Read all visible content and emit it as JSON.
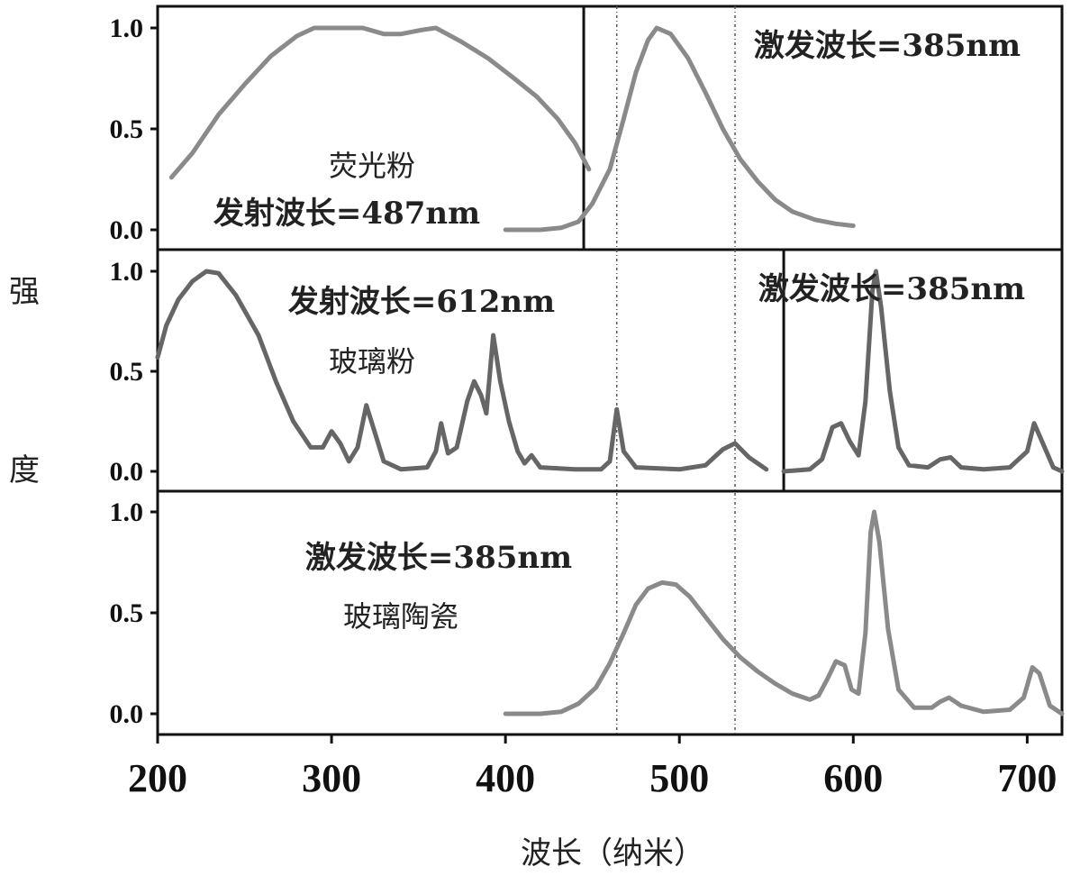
{
  "chart_data": {
    "type": "line",
    "xlabel": "波长（纳米）",
    "ylabel_chars": [
      "强",
      "度"
    ],
    "xlim": [
      200,
      720
    ],
    "x_ticks": [
      "200",
      "300",
      "400",
      "500",
      "600",
      "700"
    ],
    "grid": false,
    "reference_lines": [
      464,
      532
    ],
    "panels": [
      {
        "id": "phosphor",
        "ylim": [
          0,
          1.2
        ],
        "y_ticks": [
          "0.0",
          "0.5",
          "1.0"
        ],
        "divider_x": 445,
        "labels": {
          "material": "荧光粉",
          "emission": "发射波长=487nm",
          "excitation": "激发波长=385nm"
        },
        "series": [
          {
            "role": "excitation",
            "color": "#8a8a8a",
            "points": [
              [
                208,
                0.26
              ],
              [
                220,
                0.38
              ],
              [
                235,
                0.57
              ],
              [
                250,
                0.72
              ],
              [
                265,
                0.86
              ],
              [
                280,
                0.96
              ],
              [
                290,
                1.0
              ],
              [
                305,
                1.0
              ],
              [
                318,
                1.0
              ],
              [
                330,
                0.97
              ],
              [
                340,
                0.97
              ],
              [
                352,
                0.99
              ],
              [
                360,
                1.0
              ],
              [
                375,
                0.93
              ],
              [
                390,
                0.85
              ],
              [
                405,
                0.75
              ],
              [
                418,
                0.66
              ],
              [
                430,
                0.55
              ],
              [
                440,
                0.43
              ],
              [
                448,
                0.3
              ]
            ]
          },
          {
            "role": "emission",
            "color": "#8a8a8a",
            "points": [
              [
                400,
                0.0
              ],
              [
                420,
                0.0
              ],
              [
                432,
                0.01
              ],
              [
                442,
                0.04
              ],
              [
                450,
                0.13
              ],
              [
                460,
                0.3
              ],
              [
                468,
                0.55
              ],
              [
                475,
                0.78
              ],
              [
                482,
                0.94
              ],
              [
                487,
                1.0
              ],
              [
                495,
                0.97
              ],
              [
                505,
                0.85
              ],
              [
                515,
                0.68
              ],
              [
                525,
                0.5
              ],
              [
                535,
                0.35
              ],
              [
                545,
                0.24
              ],
              [
                555,
                0.15
              ],
              [
                565,
                0.09
              ],
              [
                578,
                0.05
              ],
              [
                590,
                0.03
              ],
              [
                600,
                0.02
              ]
            ]
          }
        ]
      },
      {
        "id": "glass_powder",
        "ylim": [
          0,
          1.2
        ],
        "y_ticks": [
          "0.0",
          "0.5",
          "1.0"
        ],
        "divider_x": 560,
        "labels": {
          "emission": "发射波长=612nm",
          "material": "玻璃粉",
          "excitation": "激发波长=385nm"
        },
        "series": [
          {
            "role": "excitation",
            "color": "#666666",
            "points": [
              [
                200,
                0.57
              ],
              [
                205,
                0.73
              ],
              [
                212,
                0.86
              ],
              [
                220,
                0.95
              ],
              [
                228,
                1.0
              ],
              [
                235,
                0.99
              ],
              [
                245,
                0.88
              ],
              [
                258,
                0.68
              ],
              [
                268,
                0.45
              ],
              [
                278,
                0.25
              ],
              [
                288,
                0.12
              ],
              [
                295,
                0.12
              ],
              [
                300,
                0.2
              ],
              [
                305,
                0.14
              ],
              [
                310,
                0.05
              ],
              [
                315,
                0.12
              ],
              [
                320,
                0.33
              ],
              [
                324,
                0.22
              ],
              [
                330,
                0.05
              ],
              [
                340,
                0.01
              ],
              [
                355,
                0.02
              ],
              [
                360,
                0.1
              ],
              [
                363,
                0.24
              ],
              [
                367,
                0.09
              ],
              [
                372,
                0.12
              ],
              [
                378,
                0.35
              ],
              [
                382,
                0.45
              ],
              [
                386,
                0.38
              ],
              [
                389,
                0.29
              ],
              [
                393,
                0.68
              ],
              [
                397,
                0.45
              ],
              [
                402,
                0.25
              ],
              [
                407,
                0.1
              ],
              [
                411,
                0.04
              ],
              [
                415,
                0.08
              ],
              [
                420,
                0.02
              ],
              [
                440,
                0.01
              ],
              [
                455,
                0.01
              ],
              [
                460,
                0.05
              ],
              [
                464,
                0.31
              ],
              [
                468,
                0.1
              ],
              [
                475,
                0.02
              ],
              [
                500,
                0.01
              ],
              [
                515,
                0.03
              ],
              [
                525,
                0.11
              ],
              [
                532,
                0.14
              ],
              [
                540,
                0.07
              ],
              [
                550,
                0.01
              ]
            ]
          },
          {
            "role": "emission",
            "color": "#666666",
            "points": [
              [
                560,
                0.0
              ],
              [
                575,
                0.01
              ],
              [
                582,
                0.06
              ],
              [
                588,
                0.22
              ],
              [
                593,
                0.24
              ],
              [
                598,
                0.15
              ],
              [
                603,
                0.08
              ],
              [
                607,
                0.35
              ],
              [
                611,
                0.9
              ],
              [
                613,
                1.0
              ],
              [
                616,
                0.82
              ],
              [
                621,
                0.4
              ],
              [
                626,
                0.12
              ],
              [
                632,
                0.03
              ],
              [
                643,
                0.02
              ],
              [
                650,
                0.06
              ],
              [
                656,
                0.07
              ],
              [
                662,
                0.02
              ],
              [
                675,
                0.01
              ],
              [
                690,
                0.02
              ],
              [
                700,
                0.1
              ],
              [
                704,
                0.24
              ],
              [
                710,
                0.12
              ],
              [
                715,
                0.02
              ],
              [
                720,
                0.0
              ]
            ]
          }
        ]
      },
      {
        "id": "glass_ceramic",
        "ylim": [
          0,
          1.2
        ],
        "y_ticks": [
          "0.0",
          "0.5",
          "1.0"
        ],
        "labels": {
          "excitation": "激发波长=385nm",
          "material": "玻璃陶瓷"
        },
        "series": [
          {
            "role": "emission",
            "color": "#8a8a8a",
            "points": [
              [
                400,
                0.0
              ],
              [
                420,
                0.0
              ],
              [
                432,
                0.01
              ],
              [
                442,
                0.05
              ],
              [
                452,
                0.13
              ],
              [
                460,
                0.25
              ],
              [
                468,
                0.4
              ],
              [
                475,
                0.54
              ],
              [
                482,
                0.62
              ],
              [
                490,
                0.65
              ],
              [
                498,
                0.64
              ],
              [
                506,
                0.58
              ],
              [
                515,
                0.48
              ],
              [
                525,
                0.37
              ],
              [
                535,
                0.28
              ],
              [
                545,
                0.21
              ],
              [
                555,
                0.15
              ],
              [
                565,
                0.1
              ],
              [
                575,
                0.07
              ],
              [
                580,
                0.09
              ],
              [
                585,
                0.17
              ],
              [
                590,
                0.26
              ],
              [
                595,
                0.24
              ],
              [
                599,
                0.12
              ],
              [
                603,
                0.1
              ],
              [
                607,
                0.4
              ],
              [
                610,
                0.9
              ],
              [
                612,
                1.0
              ],
              [
                615,
                0.85
              ],
              [
                620,
                0.42
              ],
              [
                626,
                0.12
              ],
              [
                635,
                0.03
              ],
              [
                645,
                0.03
              ],
              [
                650,
                0.06
              ],
              [
                655,
                0.08
              ],
              [
                662,
                0.04
              ],
              [
                675,
                0.01
              ],
              [
                690,
                0.02
              ],
              [
                698,
                0.08
              ],
              [
                703,
                0.23
              ],
              [
                707,
                0.2
              ],
              [
                713,
                0.04
              ],
              [
                720,
                0.0
              ]
            ]
          }
        ]
      }
    ]
  }
}
